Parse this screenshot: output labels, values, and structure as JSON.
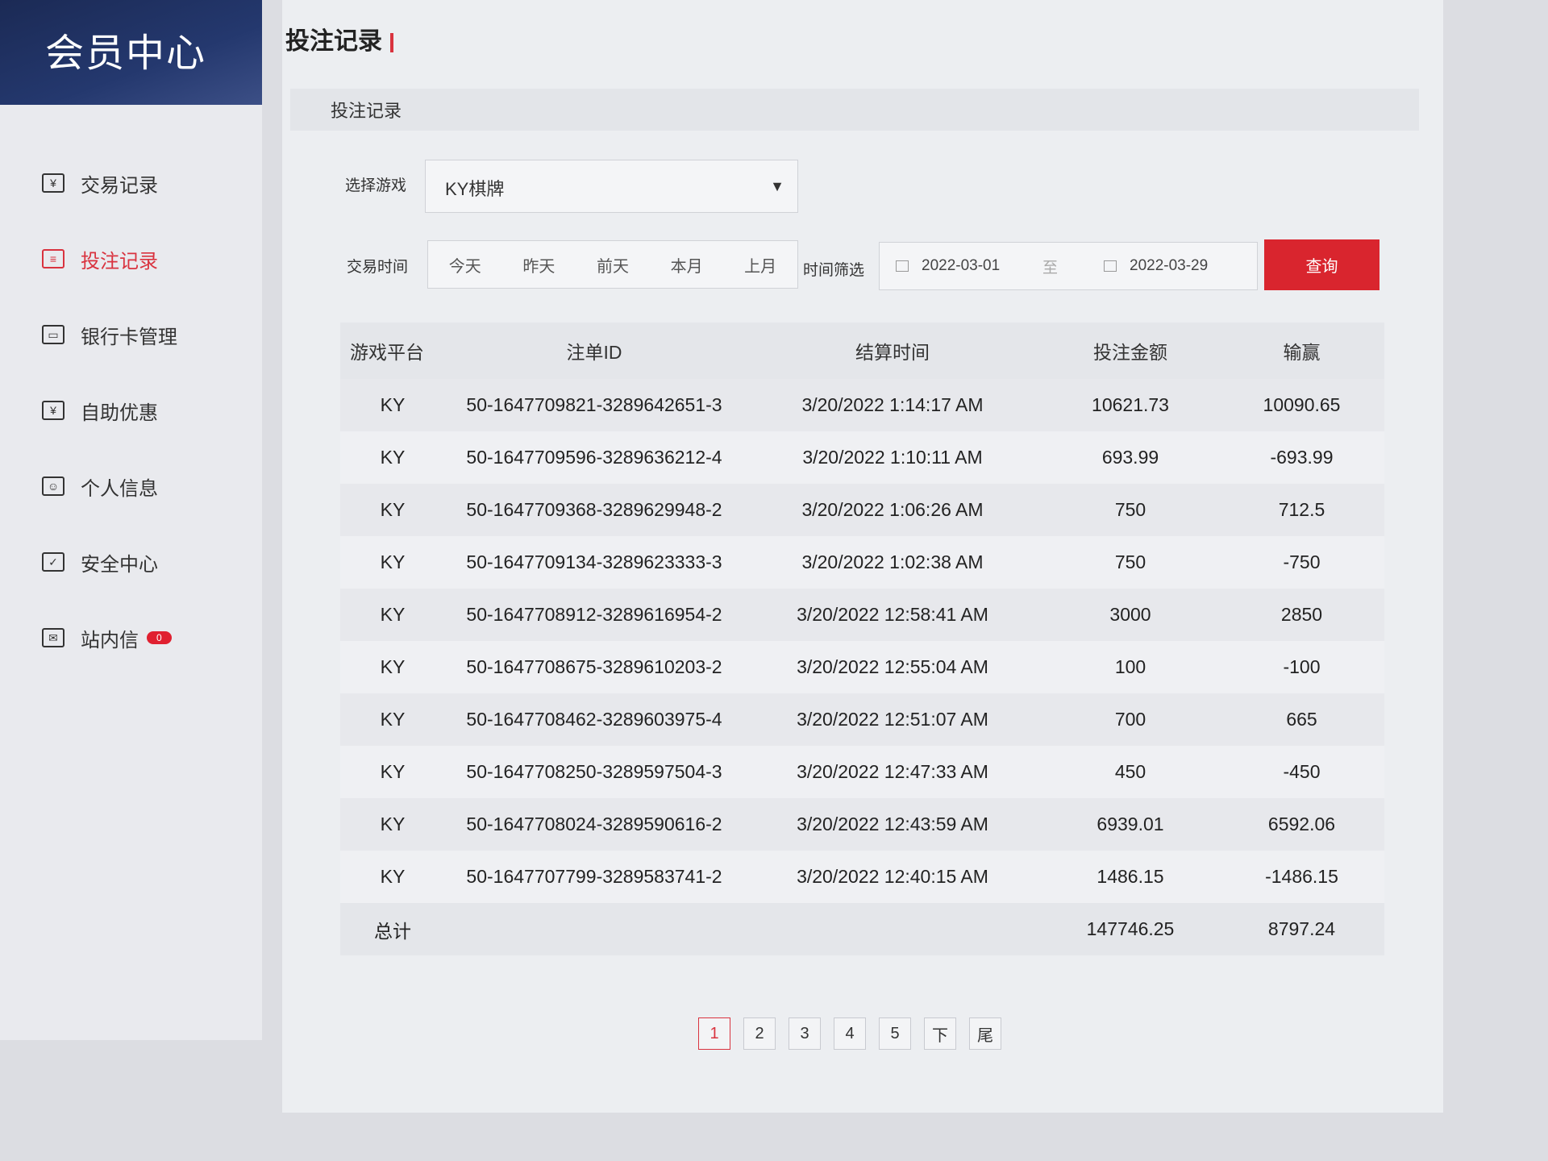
{
  "sidebar": {
    "brand": "会员中心",
    "items": [
      {
        "label": "交易记录",
        "icon": "¥",
        "active": false
      },
      {
        "label": "投注记录",
        "icon": "≡",
        "active": true
      },
      {
        "label": "银行卡管理",
        "icon": "▭",
        "active": false
      },
      {
        "label": "自助优惠",
        "icon": "¥",
        "active": false
      },
      {
        "label": "个人信息",
        "icon": "☺",
        "active": false
      },
      {
        "label": "安全中心",
        "icon": "✓",
        "active": false
      },
      {
        "label": "站内信",
        "icon": "✉",
        "active": false,
        "badge": "0"
      }
    ]
  },
  "page": {
    "title": "投注记录",
    "subtitle": "投注记录"
  },
  "filters": {
    "game_label": "选择游戏",
    "game_value": "KY棋牌",
    "time_label": "交易时间",
    "quick": [
      "今天",
      "昨天",
      "前天",
      "本月",
      "上月"
    ],
    "range_label": "时间筛选",
    "start": "2022-03-01",
    "to": "至",
    "end": "2022-03-29",
    "query": "查询"
  },
  "table": {
    "headers": [
      "游戏平台",
      "注单ID",
      "结算时间",
      "投注金额",
      "输赢"
    ],
    "rows": [
      [
        "KY",
        "50-1647709821-3289642651-3",
        "3/20/2022 1:14:17 AM",
        "10621.73",
        "10090.65"
      ],
      [
        "KY",
        "50-1647709596-3289636212-4",
        "3/20/2022 1:10:11 AM",
        "693.99",
        "-693.99"
      ],
      [
        "KY",
        "50-1647709368-3289629948-2",
        "3/20/2022 1:06:26 AM",
        "750",
        "712.5"
      ],
      [
        "KY",
        "50-1647709134-3289623333-3",
        "3/20/2022 1:02:38 AM",
        "750",
        "-750"
      ],
      [
        "KY",
        "50-1647708912-3289616954-2",
        "3/20/2022 12:58:41 AM",
        "3000",
        "2850"
      ],
      [
        "KY",
        "50-1647708675-3289610203-2",
        "3/20/2022 12:55:04 AM",
        "100",
        "-100"
      ],
      [
        "KY",
        "50-1647708462-3289603975-4",
        "3/20/2022 12:51:07 AM",
        "700",
        "665"
      ],
      [
        "KY",
        "50-1647708250-3289597504-3",
        "3/20/2022 12:47:33 AM",
        "450",
        "-450"
      ],
      [
        "KY",
        "50-1647708024-3289590616-2",
        "3/20/2022 12:43:59 AM",
        "6939.01",
        "6592.06"
      ],
      [
        "KY",
        "50-1647707799-3289583741-2",
        "3/20/2022 12:40:15 AM",
        "1486.15",
        "-1486.15"
      ]
    ],
    "total": {
      "label": "总计",
      "bet": "147746.25",
      "win": "8797.24"
    }
  },
  "pagination": {
    "pages": [
      "1",
      "2",
      "3",
      "4",
      "5"
    ],
    "current": "1",
    "next": "下",
    "last": "尾"
  },
  "colors": {
    "accent": "#d9252e",
    "brand": "#1b2a55"
  }
}
